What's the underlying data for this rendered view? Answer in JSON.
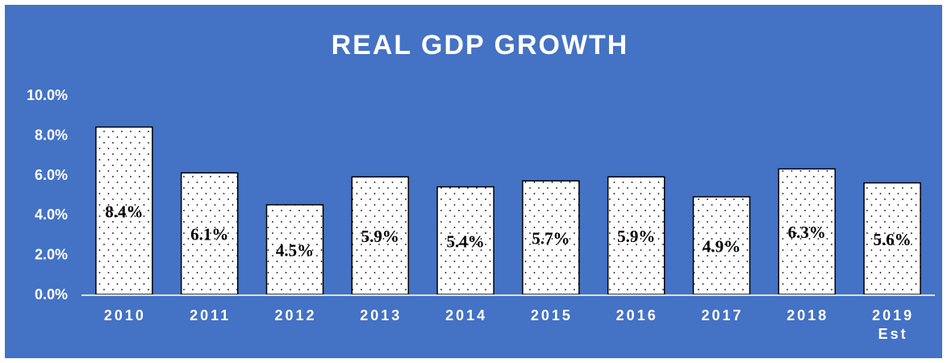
{
  "chart_data": {
    "type": "bar",
    "title": "REAL GDP GROWTH",
    "xlabel": "",
    "ylabel": "",
    "categories": [
      [
        "2010"
      ],
      [
        "2011"
      ],
      [
        "2012"
      ],
      [
        "2013"
      ],
      [
        "2014"
      ],
      [
        "2015"
      ],
      [
        "2016"
      ],
      [
        "2017"
      ],
      [
        "2018"
      ],
      [
        "2019",
        "Est"
      ]
    ],
    "values": [
      8.4,
      6.1,
      4.5,
      5.9,
      5.4,
      5.7,
      5.9,
      4.9,
      6.3,
      5.6
    ],
    "data_labels": [
      "8.4%",
      "6.1%",
      "4.5%",
      "5.9%",
      "5.4%",
      "5.7%",
      "5.9%",
      "4.9%",
      "6.3%",
      "5.6%"
    ],
    "ylim": [
      0,
      10
    ],
    "yticks": [
      0,
      2,
      4,
      6,
      8,
      10
    ],
    "ytick_labels": [
      "0.0%",
      "2.0%",
      "4.0%",
      "6.0%",
      "8.0%",
      "10.0%"
    ],
    "grid": false,
    "legend": "none",
    "colors": {
      "background": "#4472C4",
      "bar_fill": "#ffffff",
      "bar_dots": "#000000",
      "bar_border": "#000000",
      "axis_text": "#ffffff",
      "baseline": "#d9e2f3"
    }
  }
}
